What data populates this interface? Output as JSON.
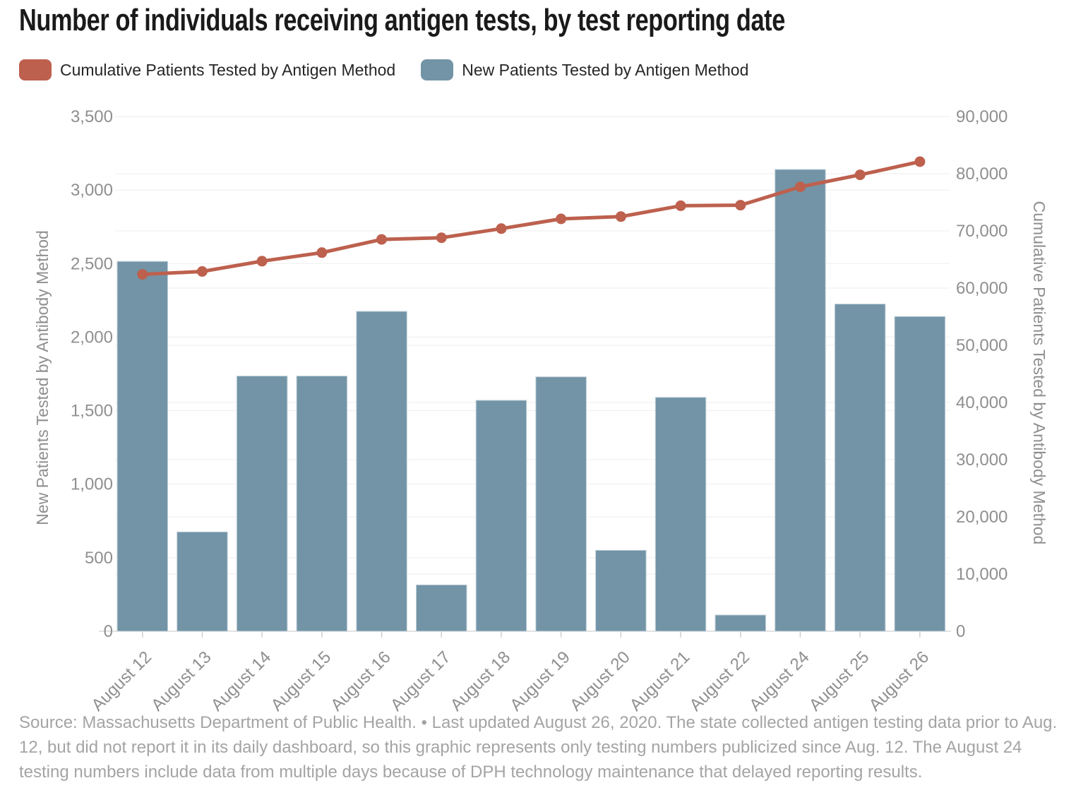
{
  "title": "Number of individuals receiving antigen tests, by test reporting date",
  "legend": [
    {
      "label": "Cumulative Patients Tested by Antigen Method",
      "color": "#bd604e",
      "swatch": "rounded-rect"
    },
    {
      "label": "New Patients Tested by Antigen Method",
      "color": "#7294a6",
      "swatch": "rounded-rect"
    }
  ],
  "footer": "Source: Massachusetts Department of Public Health. • Last updated August 26, 2020. The state collected antigen testing data prior to Aug. 12, but did not report it in its daily dashboard, so this graphic represents only testing numbers publicized since Aug. 12. The August 24 testing numbers include data from multiple days because of DPH technology maintenance that delayed reporting results.",
  "colors": {
    "bar": "#7294a6",
    "bar_edge": "#c2d1da",
    "line": "#bd604e",
    "grid": "#ededed",
    "baseline": "#d9d9d9",
    "tick_mark": "#cfcfcf",
    "tick_text": "#8f8f8f",
    "title_text": "#1a1a1a",
    "footer_text": "#a4a4a4"
  },
  "chart_data": {
    "type": "bar",
    "subtype": "bar-with-line-overlay",
    "grid": true,
    "legend_position": "top",
    "categories": [
      "August 12",
      "August 13",
      "August 14",
      "August 15",
      "August 16",
      "August 17",
      "August 18",
      "August 19",
      "August 20",
      "August 21",
      "August 22",
      "August 24",
      "August 25",
      "August 26"
    ],
    "series": [
      {
        "name": "New Patients Tested by Antigen Method",
        "type": "bar",
        "axis": "left",
        "color": "#7294a6",
        "values": [
          2515,
          675,
          1735,
          1735,
          2175,
          315,
          1570,
          1730,
          550,
          1590,
          110,
          3140,
          2225,
          2140
        ]
      },
      {
        "name": "Cumulative Patients Tested by Antigen Method",
        "type": "line",
        "axis": "right",
        "color": "#bd604e",
        "values": [
          62400,
          62900,
          64700,
          66200,
          68500,
          68800,
          70400,
          72100,
          72500,
          74400,
          74500,
          77700,
          79800,
          82100
        ]
      }
    ],
    "left_axis": {
      "title": "New Patients Tested by Antibody Method",
      "min": 0,
      "max": 3500,
      "ticks": [
        {
          "value": 0,
          "label": "0"
        },
        {
          "value": 500,
          "label": "500"
        },
        {
          "value": 1000,
          "label": "1,000"
        },
        {
          "value": 1500,
          "label": "1,500"
        },
        {
          "value": 2000,
          "label": "2,000"
        },
        {
          "value": 2500,
          "label": "2,500"
        },
        {
          "value": 3000,
          "label": "3,000"
        },
        {
          "value": 3500,
          "label": "3,500"
        }
      ]
    },
    "right_axis": {
      "title": "Cumulative Patients Tested by Antibody Method",
      "min": 0,
      "max": 90000,
      "ticks": [
        {
          "value": 0,
          "label": "0"
        },
        {
          "value": 10000,
          "label": "10,000"
        },
        {
          "value": 20000,
          "label": "20,000"
        },
        {
          "value": 30000,
          "label": "30,000"
        },
        {
          "value": 40000,
          "label": "40,000"
        },
        {
          "value": 50000,
          "label": "50,000"
        },
        {
          "value": 60000,
          "label": "60,000"
        },
        {
          "value": 70000,
          "label": "70,000"
        },
        {
          "value": 80000,
          "label": "80,000"
        },
        {
          "value": 90000,
          "label": "90,000"
        }
      ]
    }
  }
}
